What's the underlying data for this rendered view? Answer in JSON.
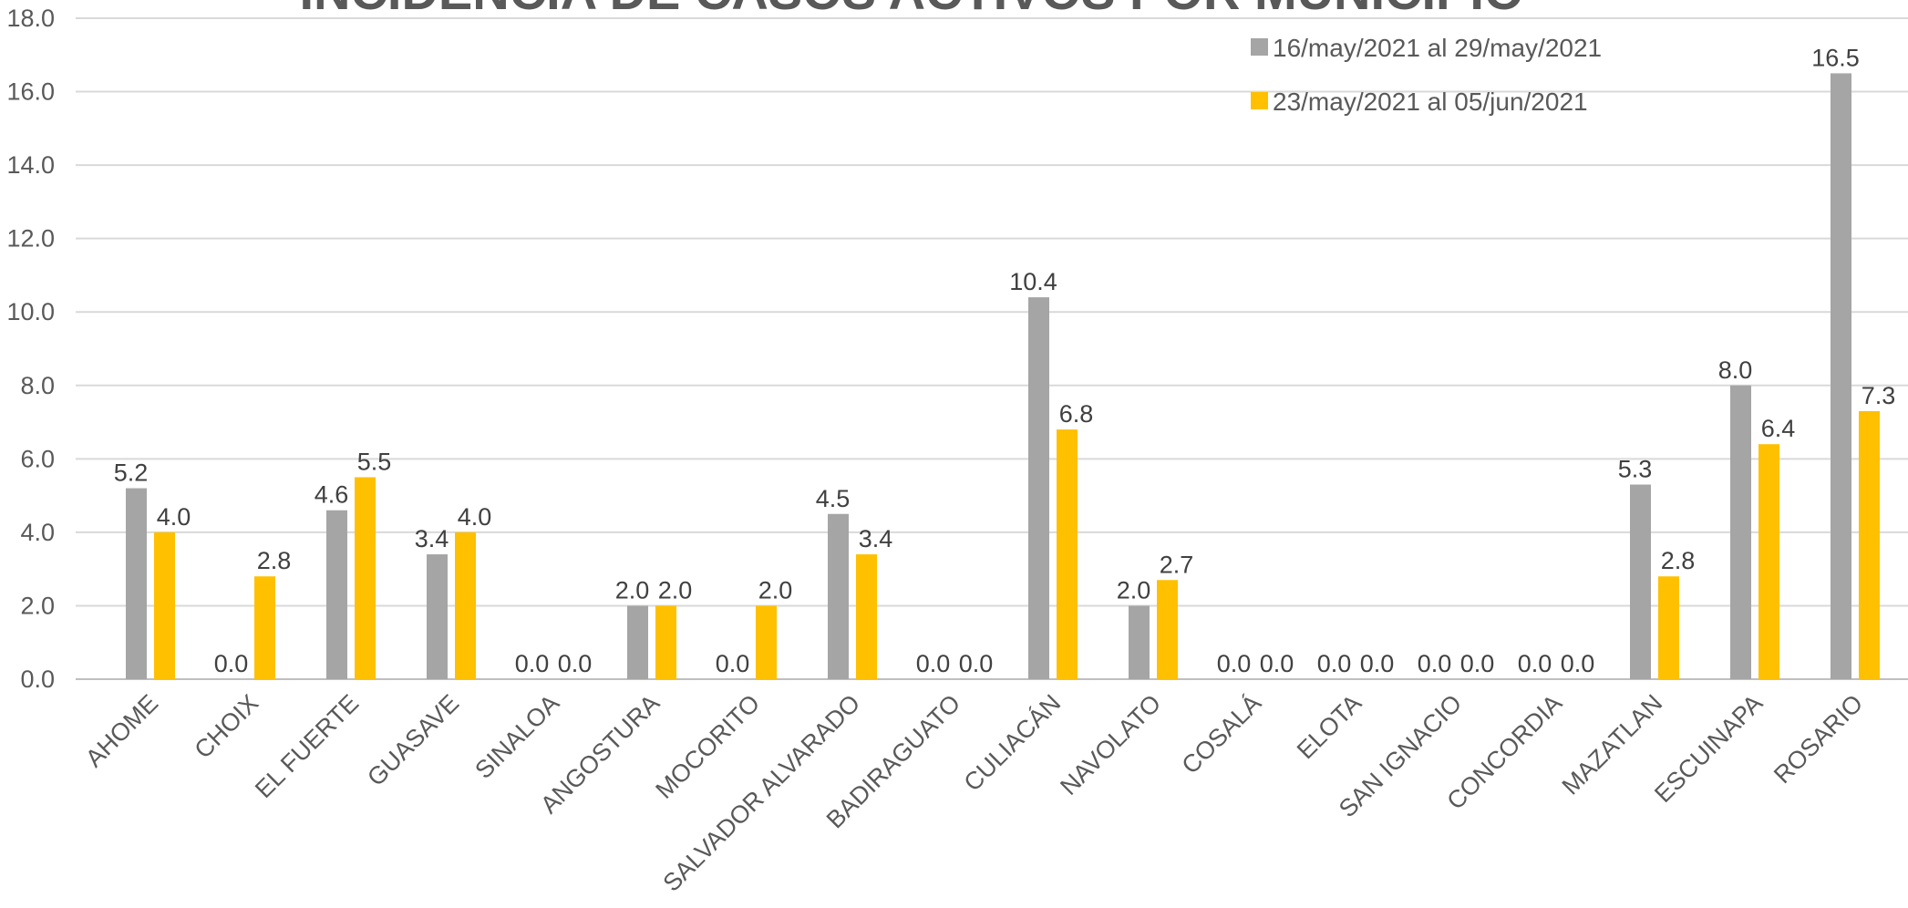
{
  "chart_data": {
    "type": "bar",
    "title": "INCIDENCIA DE CASOS ACTIVOS POR MUNICIPIO",
    "xlabel": "",
    "ylabel": "",
    "ylim": [
      0,
      18
    ],
    "yticks": [
      "0.0",
      "2.0",
      "4.0",
      "6.0",
      "8.0",
      "10.0",
      "12.0",
      "14.0",
      "16.0",
      "18.0"
    ],
    "grid": true,
    "legend_position": "top-right",
    "categories": [
      "AHOME",
      "CHOIX",
      "EL FUERTE",
      "GUASAVE",
      "SINALOA",
      "ANGOSTURA",
      "MOCORITO",
      "SALVADOR ALVARADO",
      "BADIRAGUATO",
      "CULIACÁN",
      "NAVOLATO",
      "COSALÁ",
      "ELOTA",
      "SAN IGNACIO",
      "CONCORDIA",
      "MAZATLAN",
      "ESCUINAPA",
      "ROSARIO"
    ],
    "series": [
      {
        "name": "16/may/2021 al  29/may/2021",
        "color": "#a5a5a5",
        "values": [
          5.2,
          0.0,
          4.6,
          3.4,
          0.0,
          2.0,
          0.0,
          4.5,
          0.0,
          10.4,
          2.0,
          0.0,
          0.0,
          0.0,
          0.0,
          5.3,
          8.0,
          16.5
        ],
        "labels": [
          "5.2",
          "0.0",
          "4.6",
          "3.4",
          "0.0",
          "2.0",
          "0.0",
          "4.5",
          "0.0",
          "10.4",
          "2.0",
          "0.0",
          "0.0",
          "0.0",
          "0.0",
          "5.3",
          "8.0",
          "16.5"
        ]
      },
      {
        "name": "23/may/2021 al  05/jun/2021",
        "color": "#ffc000",
        "values": [
          4.0,
          2.8,
          5.5,
          4.0,
          0.0,
          2.0,
          2.0,
          3.4,
          0.0,
          6.8,
          2.7,
          0.0,
          0.0,
          0.0,
          0.0,
          2.8,
          6.4,
          7.3
        ],
        "labels": [
          "4.0",
          "2.8",
          "5.5",
          "4.0",
          "0.0",
          "2.0",
          "2.0",
          "3.4",
          "0.0",
          "6.8",
          "2.7",
          "0.0",
          "0.0",
          "0.0",
          "0.0",
          "2.8",
          "6.4",
          "7.3"
        ]
      }
    ]
  }
}
